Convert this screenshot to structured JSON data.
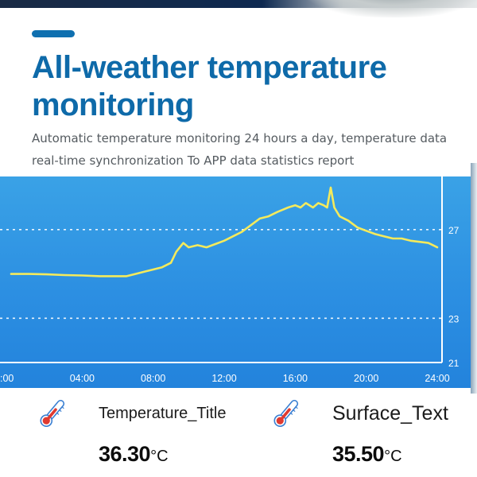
{
  "header": {
    "title_line1": "All-weather temperature",
    "title_line2": "monitoring",
    "description_line1": "Automatic temperature monitoring 24 hours a day, temperature data",
    "description_line2": "real-time synchronization To APP data statistics report"
  },
  "chart_data": {
    "type": "line",
    "x_tick_labels": [
      ":00",
      "04:00",
      "08:00",
      "12:00",
      "16:00",
      "20:00",
      "24:00"
    ],
    "y_tick_labels": [
      "27",
      "23",
      "21"
    ],
    "ylim": [
      21,
      29.4
    ],
    "xlim": [
      0,
      24
    ],
    "grid": "dashed horizontal lines at 27 and 23",
    "series": [
      {
        "color": "#f4ea5c",
        "x": [
          0,
          1,
          2,
          3,
          4,
          5,
          6,
          6.5,
          7,
          7.5,
          8,
          8.5,
          9,
          9.3,
          9.5,
          9.7,
          10,
          10.5,
          11,
          11.5,
          12,
          12.5,
          13,
          13.5,
          14,
          14.5,
          15,
          15.3,
          15.6,
          16,
          16.3,
          16.6,
          17,
          17.3,
          17.6,
          17.8,
          18,
          18.2,
          18.5,
          19,
          19.5,
          20,
          20.5,
          21,
          21.5,
          22,
          22.5,
          23,
          23.5,
          24
        ],
        "y": [
          25.0,
          25.0,
          24.98,
          24.95,
          24.93,
          24.9,
          24.9,
          24.9,
          25.0,
          25.1,
          25.2,
          25.3,
          25.5,
          26.0,
          26.2,
          26.4,
          26.2,
          26.3,
          26.2,
          26.35,
          26.5,
          26.7,
          26.9,
          27.2,
          27.5,
          27.6,
          27.8,
          27.9,
          28.0,
          28.1,
          28.0,
          28.2,
          28.0,
          28.2,
          28.1,
          28.0,
          28.9,
          28.0,
          27.6,
          27.4,
          27.1,
          26.95,
          26.8,
          26.7,
          26.6,
          26.6,
          26.5,
          26.45,
          26.4,
          26.2
        ]
      }
    ]
  },
  "stats": [
    {
      "icon": "thermometer-icon",
      "title": "Temperature_Title",
      "value": "36.30",
      "unit": "°C"
    },
    {
      "icon": "thermometer-icon",
      "title": "Surface_Text",
      "value": "35.50",
      "unit": "°C"
    }
  ],
  "colors": {
    "accent": "#0f70b0",
    "chart_background": "#2c8fe2",
    "line": "#f4ea5c",
    "thermometer_red": "#e03a30"
  }
}
